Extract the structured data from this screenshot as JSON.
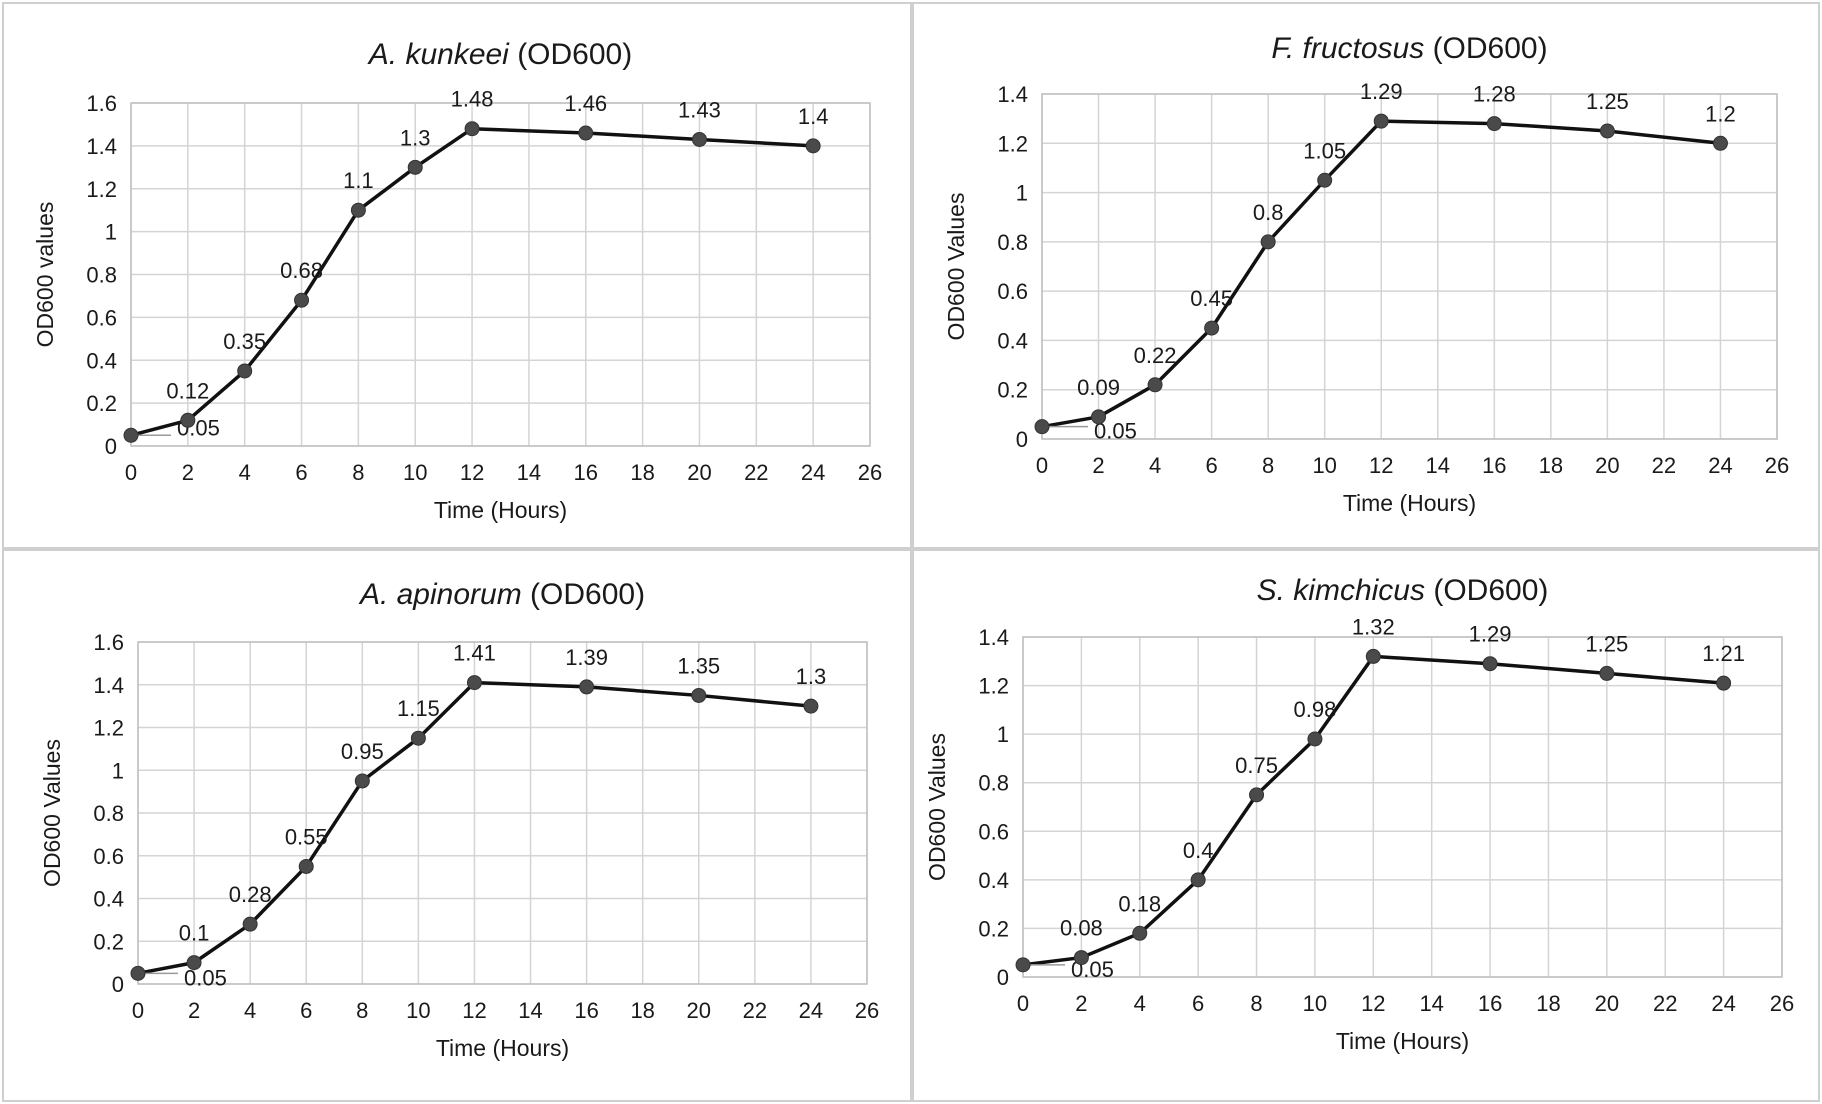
{
  "chart_data": [
    {
      "type": "line",
      "title_italic": "A. kunkeei",
      "title_rest": " (OD600)",
      "xlabel": "Time (Hours)",
      "ylabel": "OD600 values",
      "xlim": [
        0,
        26
      ],
      "ylim": [
        0,
        1.6
      ],
      "xticks": [
        "0",
        "2",
        "4",
        "6",
        "8",
        "10",
        "12",
        "14",
        "16",
        "18",
        "20",
        "22",
        "24",
        "26"
      ],
      "yticks": [
        "0",
        "0.2",
        "0.4",
        "0.6",
        "0.8",
        "1",
        "1.2",
        "1.4",
        "1.6"
      ],
      "grid": true,
      "series": [
        {
          "x": [
            0,
            2,
            4,
            6,
            8,
            10,
            12,
            16,
            20,
            24
          ],
          "y": [
            0.05,
            0.12,
            0.35,
            0.68,
            1.1,
            1.3,
            1.48,
            1.46,
            1.43,
            1.4
          ],
          "labels": [
            "0.05",
            "0.12",
            "0.35",
            "0.68",
            "1.1",
            "1.3",
            "1.48",
            "1.46",
            "1.43",
            "1.4"
          ]
        }
      ]
    },
    {
      "type": "line",
      "title_italic": "F. fructosus",
      "title_rest": " (OD600)",
      "xlabel": "Time (Hours)",
      "ylabel": "OD600 Values",
      "xlim": [
        0,
        26
      ],
      "ylim": [
        0,
        1.4
      ],
      "xticks": [
        "0",
        "2",
        "4",
        "6",
        "8",
        "10",
        "12",
        "14",
        "16",
        "18",
        "20",
        "22",
        "24",
        "26"
      ],
      "yticks": [
        "0",
        "0.2",
        "0.4",
        "0.6",
        "0.8",
        "1",
        "1.2",
        "1.4"
      ],
      "grid": true,
      "series": [
        {
          "x": [
            0,
            2,
            4,
            6,
            8,
            10,
            12,
            16,
            20,
            24
          ],
          "y": [
            0.05,
            0.09,
            0.22,
            0.45,
            0.8,
            1.05,
            1.29,
            1.28,
            1.25,
            1.2
          ],
          "labels": [
            "0.05",
            "0.09",
            "0.22",
            "0.45",
            "0.8",
            "1.05",
            "1.29",
            "1.28",
            "1.25",
            "1.2"
          ]
        }
      ]
    },
    {
      "type": "line",
      "title_italic": "A. apinorum",
      "title_rest": " (OD600)",
      "xlabel": "Time (Hours)",
      "ylabel": "OD600 Values",
      "xlim": [
        0,
        26
      ],
      "ylim": [
        0,
        1.6
      ],
      "xticks": [
        "0",
        "2",
        "4",
        "6",
        "8",
        "10",
        "12",
        "14",
        "16",
        "18",
        "20",
        "22",
        "24",
        "26"
      ],
      "yticks": [
        "0",
        "0.2",
        "0.4",
        "0.6",
        "0.8",
        "1",
        "1.2",
        "1.4",
        "1.6"
      ],
      "grid": true,
      "series": [
        {
          "x": [
            0,
            2,
            4,
            6,
            8,
            10,
            12,
            16,
            20,
            24
          ],
          "y": [
            0.05,
            0.1,
            0.28,
            0.55,
            0.95,
            1.15,
            1.41,
            1.39,
            1.35,
            1.3
          ],
          "labels": [
            "0.05",
            "0.1",
            "0.28",
            "0.55",
            "0.95",
            "1.15",
            "1.41",
            "1.39",
            "1.35",
            "1.3"
          ]
        }
      ]
    },
    {
      "type": "line",
      "title_italic": "S. kimchicus",
      "title_rest": " (OD600)",
      "xlabel": "Time (Hours)",
      "ylabel": "OD600 Values",
      "xlim": [
        0,
        26
      ],
      "ylim": [
        0,
        1.4
      ],
      "xticks": [
        "0",
        "2",
        "4",
        "6",
        "8",
        "10",
        "12",
        "14",
        "16",
        "18",
        "20",
        "22",
        "24",
        "26"
      ],
      "yticks": [
        "0",
        "0.2",
        "0.4",
        "0.6",
        "0.8",
        "1",
        "1.2",
        "1.4"
      ],
      "grid": true,
      "series": [
        {
          "x": [
            0,
            2,
            4,
            6,
            8,
            10,
            12,
            16,
            20,
            24
          ],
          "y": [
            0.05,
            0.08,
            0.18,
            0.4,
            0.75,
            0.98,
            1.32,
            1.29,
            1.25,
            1.21
          ],
          "labels": [
            "0.05",
            "0.08",
            "0.18",
            "0.4",
            "0.75",
            "0.98",
            "1.32",
            "1.29",
            "1.25",
            "1.21"
          ]
        }
      ]
    }
  ],
  "colors": {
    "line": "#111111",
    "marker": "#4a4a4a",
    "grid": "#d4d4d4",
    "axis": "#bfbfbf",
    "panel_border": "#cfcfcf"
  }
}
